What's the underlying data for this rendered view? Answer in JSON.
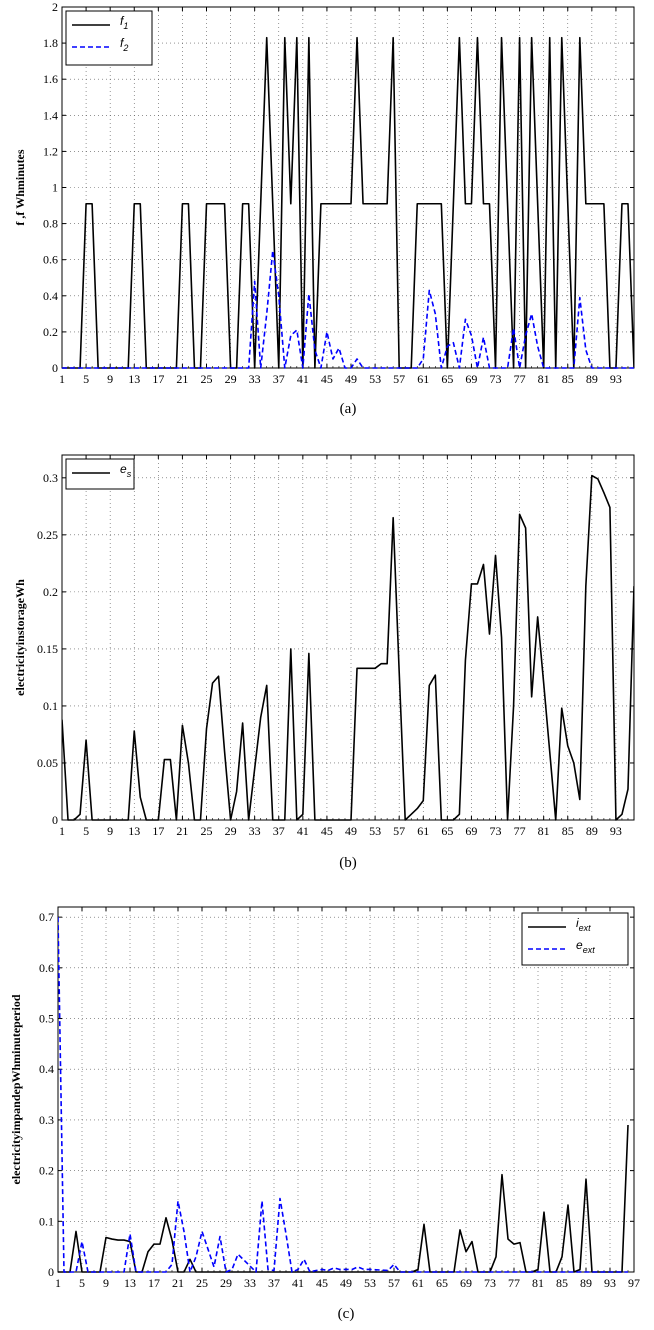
{
  "chart_data": [
    {
      "type": "line",
      "caption": "(a)",
      "ylabel": "f ,f  Whminutes",
      "xlim": [
        1,
        96
      ],
      "ylim": [
        0,
        2
      ],
      "xticks": [
        1,
        5,
        9,
        13,
        17,
        21,
        25,
        29,
        33,
        37,
        41,
        45,
        49,
        53,
        57,
        61,
        65,
        69,
        73,
        77,
        81,
        85,
        89,
        93
      ],
      "yticks": [
        0,
        0.2,
        0.4,
        0.6,
        0.8,
        1,
        1.2,
        1.4,
        1.6,
        1.8,
        2
      ],
      "yticklabels": [
        "0",
        "0.2",
        "0.4",
        "0.6",
        "0.8",
        "1",
        "1.2",
        "1.4",
        "1.6",
        "1.8",
        "2"
      ],
      "grid": true,
      "legend_position": "top-left",
      "series": [
        {
          "name": "f",
          "sub": "1",
          "color": "#000000",
          "dash": false,
          "x": [
            1,
            4,
            5,
            6,
            7,
            12,
            13,
            14,
            15,
            20,
            21,
            22,
            23,
            24,
            25,
            26,
            27,
            28,
            29,
            30,
            31,
            32,
            33,
            34,
            35,
            36,
            37,
            38,
            39,
            40,
            41,
            42,
            43,
            44,
            45,
            46,
            47,
            48,
            49,
            50,
            51,
            52,
            53,
            54,
            55,
            56,
            57,
            58,
            59,
            60,
            61,
            62,
            63,
            64,
            65,
            66,
            67,
            68,
            69,
            70,
            71,
            72,
            73,
            74,
            75,
            76,
            77,
            78,
            79,
            80,
            81,
            82,
            83,
            84,
            85,
            86,
            87,
            88,
            89,
            90,
            91,
            92,
            93,
            94,
            95,
            96
          ],
          "y": [
            0,
            0,
            0.91,
            0.91,
            0,
            0,
            0.91,
            0.91,
            0,
            0,
            0.91,
            0.91,
            0,
            0,
            0.91,
            0.91,
            0.91,
            0.91,
            0,
            0,
            0.91,
            0.91,
            0,
            0.91,
            1.83,
            0.91,
            0,
            1.83,
            0.91,
            1.83,
            0,
            1.83,
            0,
            0.91,
            0.91,
            0.91,
            0.91,
            0.91,
            0.91,
            1.83,
            0.91,
            0.91,
            0.91,
            0.91,
            0.91,
            1.83,
            0,
            0,
            0,
            0.91,
            0.91,
            0.91,
            0.91,
            0.91,
            0,
            0.91,
            1.83,
            0.91,
            0.91,
            1.83,
            0.91,
            0.91,
            0,
            1.83,
            0.91,
            0,
            1.83,
            0,
            1.83,
            0.91,
            0,
            1.83,
            0,
            1.83,
            0.91,
            0,
            1.83,
            0.91,
            0.91,
            0.91,
            0.91,
            0,
            0,
            0.91,
            0.91,
            0
          ]
        },
        {
          "name": "f",
          "sub": "2",
          "color": "#0000ff",
          "dash": true,
          "x": [
            1,
            32,
            33,
            34,
            35,
            36,
            37,
            38,
            39,
            40,
            41,
            42,
            43,
            44,
            45,
            46,
            47,
            48,
            49,
            50,
            51,
            60,
            61,
            62,
            63,
            64,
            65,
            66,
            67,
            68,
            69,
            70,
            71,
            72,
            75,
            76,
            77,
            78,
            79,
            80,
            81,
            85,
            86,
            87,
            88,
            89,
            96
          ],
          "y": [
            0,
            0,
            0.48,
            0,
            0.3,
            0.65,
            0.4,
            0,
            0.18,
            0.21,
            0,
            0.41,
            0.1,
            0,
            0.2,
            0.05,
            0.11,
            0,
            0,
            0.05,
            0,
            0,
            0.05,
            0.43,
            0.3,
            0,
            0.12,
            0.14,
            0,
            0.27,
            0.18,
            0,
            0.17,
            0,
            0,
            0.22,
            0,
            0.18,
            0.3,
            0.12,
            0,
            0,
            0,
            0.39,
            0.1,
            0,
            0
          ]
        }
      ]
    },
    {
      "type": "line",
      "caption": "(b)",
      "ylabel": "electricityinstorageWh",
      "xlim": [
        1,
        96
      ],
      "ylim": [
        0,
        0.32
      ],
      "xticks": [
        1,
        5,
        9,
        13,
        17,
        21,
        25,
        29,
        33,
        37,
        41,
        45,
        49,
        53,
        57,
        61,
        65,
        69,
        73,
        77,
        81,
        85,
        89,
        93
      ],
      "yticks": [
        0,
        0.05,
        0.1,
        0.15,
        0.2,
        0.25,
        0.3
      ],
      "yticklabels": [
        "0",
        "0.05",
        "0.1",
        "0.15",
        "0.2",
        "0.25",
        "0.3"
      ],
      "grid": true,
      "legend_position": "top-left",
      "series": [
        {
          "name": "e",
          "sub": "s",
          "color": "#000000",
          "dash": false,
          "x": [
            1,
            2,
            3,
            4,
            5,
            6,
            7,
            8,
            9,
            10,
            11,
            12,
            13,
            14,
            15,
            16,
            17,
            18,
            19,
            20,
            21,
            22,
            23,
            24,
            25,
            26,
            27,
            28,
            29,
            30,
            31,
            32,
            33,
            34,
            35,
            36,
            37,
            38,
            39,
            40,
            41,
            42,
            43,
            44,
            45,
            46,
            47,
            48,
            49,
            50,
            51,
            52,
            53,
            54,
            55,
            56,
            57,
            58,
            59,
            60,
            61,
            62,
            63,
            64,
            65,
            66,
            67,
            68,
            69,
            70,
            71,
            72,
            73,
            74,
            75,
            76,
            77,
            78,
            79,
            80,
            81,
            82,
            83,
            84,
            85,
            86,
            87,
            88,
            89,
            90,
            91,
            92,
            93,
            94,
            95,
            96
          ],
          "y": [
            0.088,
            0,
            0,
            0.005,
            0.07,
            0,
            0,
            0,
            0,
            0,
            0,
            0,
            0.078,
            0.02,
            0,
            0,
            0,
            0.053,
            0.053,
            0,
            0.083,
            0.05,
            0,
            0,
            0.08,
            0.12,
            0.126,
            0.06,
            0,
            0.025,
            0.085,
            0,
            0.045,
            0.09,
            0.118,
            0,
            0,
            0,
            0.15,
            0,
            0.005,
            0.146,
            0,
            0,
            0,
            0,
            0,
            0,
            0,
            0.133,
            0.133,
            0.133,
            0.133,
            0.137,
            0.137,
            0.265,
            0.13,
            0,
            0.005,
            0.01,
            0.017,
            0.118,
            0.127,
            0,
            0,
            0,
            0.005,
            0.14,
            0.207,
            0.207,
            0.224,
            0.163,
            0.232,
            0.16,
            0,
            0.1,
            0.268,
            0.256,
            0.108,
            0.178,
            0.12,
            0.06,
            0,
            0.098,
            0.065,
            0.05,
            0.018,
            0.205,
            0.302,
            0.299,
            0.287,
            0.274,
            0,
            0.005,
            0.027,
            0.205
          ]
        }
      ]
    },
    {
      "type": "line",
      "caption": "(c)",
      "ylabel": "electricityimpandepWhminuteperiod",
      "xlim": [
        1,
        97
      ],
      "ylim": [
        0,
        0.72
      ],
      "xticks": [
        1,
        5,
        9,
        13,
        17,
        21,
        25,
        29,
        33,
        37,
        41,
        45,
        49,
        53,
        57,
        61,
        65,
        69,
        73,
        77,
        81,
        85,
        89,
        93,
        97
      ],
      "yticks": [
        0,
        0.1,
        0.2,
        0.3,
        0.4,
        0.5,
        0.6,
        0.7
      ],
      "yticklabels": [
        "0",
        "0.1",
        "0.2",
        "0.3",
        "0.4",
        "0.5",
        "0.6",
        "0.7"
      ],
      "grid": true,
      "legend_position": "top-right",
      "series": [
        {
          "name": "i",
          "sub": "ext",
          "color": "#000000",
          "dash": false,
          "x": [
            1,
            3,
            4,
            5,
            7,
            8,
            9,
            10,
            11,
            12,
            13,
            14,
            15,
            16,
            17,
            18,
            19,
            20,
            21,
            22,
            23,
            24,
            25,
            60,
            61,
            62,
            63,
            67,
            68,
            69,
            70,
            71,
            73,
            74,
            75,
            76,
            77,
            78,
            79,
            80,
            81,
            82,
            83,
            84,
            85,
            86,
            87,
            88,
            89,
            90,
            95,
            96
          ],
          "y": [
            0,
            0,
            0.08,
            0,
            0,
            0,
            0.068,
            0.065,
            0.063,
            0.063,
            0.06,
            0,
            0,
            0.04,
            0.055,
            0.055,
            0.107,
            0.063,
            0,
            0,
            0.025,
            0,
            0,
            0,
            0.005,
            0.094,
            0,
            0,
            0.083,
            0.04,
            0.06,
            0,
            0,
            0.03,
            0.192,
            0.065,
            0.055,
            0.058,
            0,
            0,
            0.005,
            0.118,
            0,
            0,
            0.03,
            0.132,
            0,
            0.005,
            0.183,
            0,
            0,
            0.29
          ]
        },
        {
          "name": "e",
          "sub": "ext",
          "color": "#0000ff",
          "dash": true,
          "x": [
            1,
            2,
            3,
            4,
            5,
            6,
            12,
            13,
            14,
            19,
            20,
            21,
            22,
            23,
            24,
            25,
            26,
            27,
            28,
            29,
            30,
            31,
            34,
            35,
            36,
            37,
            38,
            39,
            40,
            41,
            42,
            43,
            44,
            45,
            46,
            47,
            48,
            49,
            50,
            51,
            52,
            53,
            56,
            57,
            58,
            96
          ],
          "y": [
            0.7,
            0,
            0,
            0,
            0.06,
            0,
            0,
            0.075,
            0,
            0,
            0.015,
            0.14,
            0.08,
            0,
            0.03,
            0.08,
            0.045,
            0.01,
            0.07,
            0,
            0.005,
            0.035,
            0,
            0.14,
            0.005,
            0.003,
            0.145,
            0.075,
            0,
            0.005,
            0.025,
            0,
            0.003,
            0.005,
            0.003,
            0.008,
            0.005,
            0.005,
            0.005,
            0.01,
            0.005,
            0.005,
            0.003,
            0.015,
            0,
            0
          ]
        }
      ]
    }
  ]
}
